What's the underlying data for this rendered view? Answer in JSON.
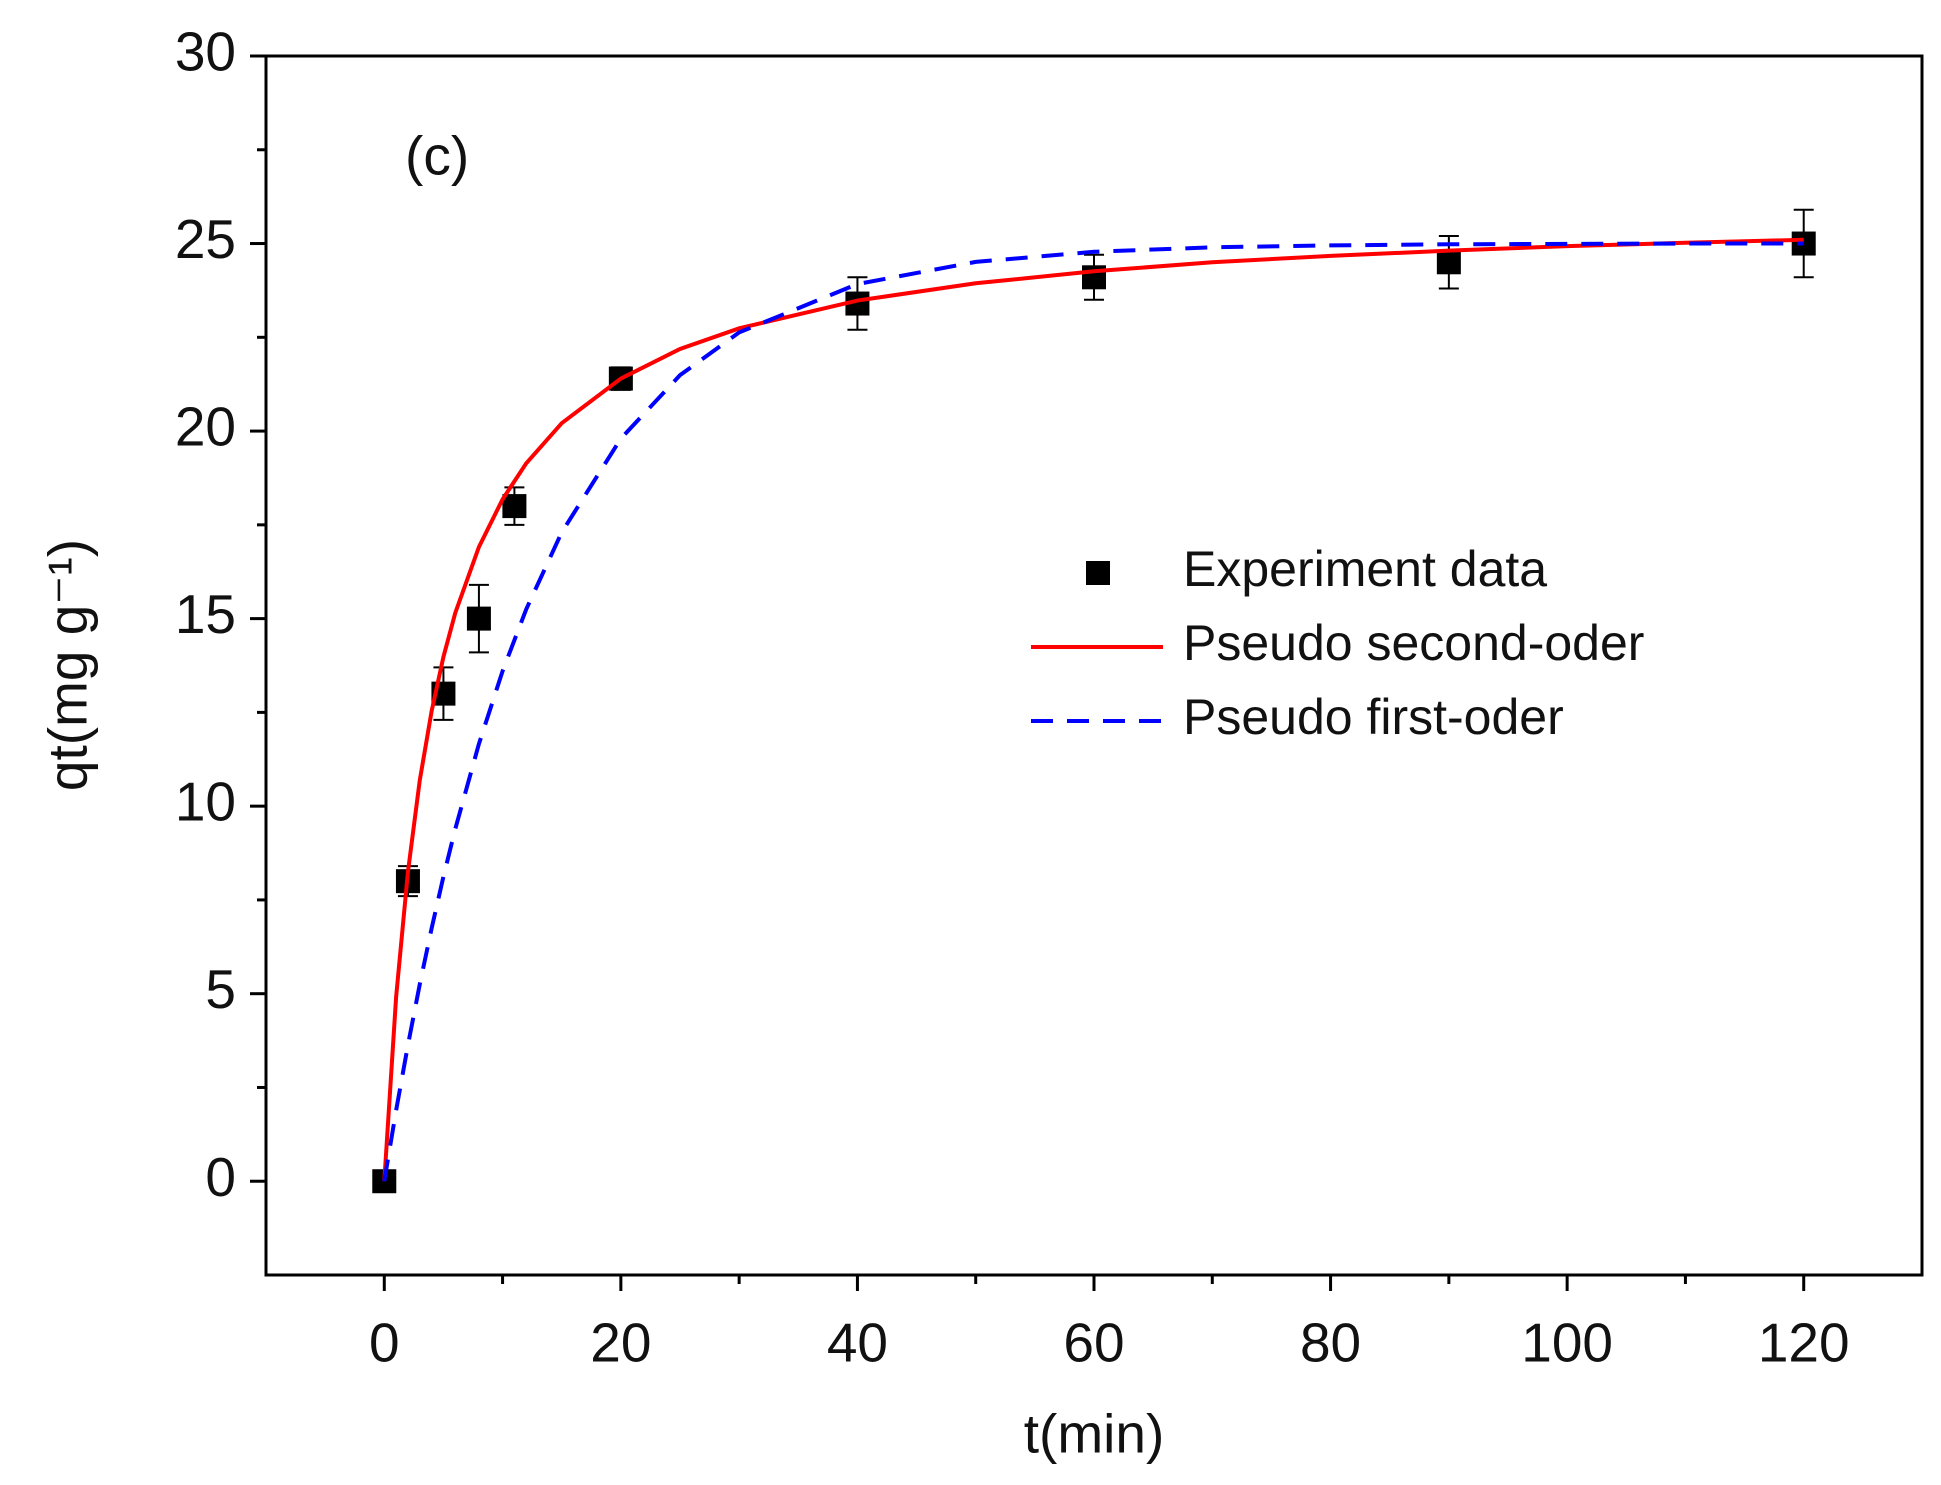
{
  "chart_data": {
    "type": "scatter-line",
    "annotation": "(c)",
    "x_label": "t(min)",
    "y_label": "qt(mg g⁻¹)",
    "xlim": [
      -10,
      130
    ],
    "xticks": [
      0,
      20,
      40,
      60,
      80,
      100,
      120
    ],
    "ylim": [
      -2.5,
      30
    ],
    "yticks": [
      0,
      5,
      10,
      15,
      20,
      25,
      30
    ],
    "legend": "center-right",
    "series": [
      {
        "name": "Experiment data",
        "kind": "scatter",
        "color": "#000000",
        "x": [
          0,
          2,
          5,
          8,
          11,
          20,
          40,
          60,
          90,
          120
        ],
        "values": [
          0,
          8,
          13,
          15,
          18,
          21.4,
          23.4,
          24.1,
          24.5,
          25
        ],
        "errors": [
          0,
          0.4,
          0.7,
          0.9,
          0.5,
          0.3,
          0.7,
          0.6,
          0.7,
          0.9
        ]
      },
      {
        "name": "Pseudo second-oder",
        "kind": "line",
        "dash": false,
        "color": "#ff0000",
        "x": [
          0,
          1,
          2,
          3,
          4,
          5,
          6,
          8,
          10,
          12,
          15,
          20,
          25,
          30,
          40,
          50,
          60,
          70,
          80,
          90,
          100,
          110,
          120
        ],
        "values": [
          0,
          4.91,
          8.25,
          10.69,
          12.53,
          13.98,
          15.15,
          16.91,
          18.18,
          19.14,
          20.21,
          21.4,
          22.19,
          22.74,
          23.48,
          23.94,
          24.26,
          24.5,
          24.67,
          24.81,
          24.93,
          25.02,
          25.1
        ]
      },
      {
        "name": "Pseudo first-oder",
        "kind": "line",
        "dash": true,
        "color": "#0000ff",
        "x": [
          0,
          1,
          2,
          3,
          4,
          5,
          6,
          8,
          10,
          12,
          15,
          20,
          25,
          30,
          40,
          50,
          60,
          70,
          80,
          90,
          100,
          110,
          120
        ],
        "values": [
          0,
          1.89,
          3.63,
          5.25,
          6.74,
          8.12,
          9.39,
          11.66,
          13.6,
          15.25,
          17.3,
          19.8,
          21.49,
          22.63,
          23.92,
          24.51,
          24.78,
          24.9,
          24.95,
          24.98,
          24.99,
          25.0,
          25.0
        ]
      }
    ]
  }
}
